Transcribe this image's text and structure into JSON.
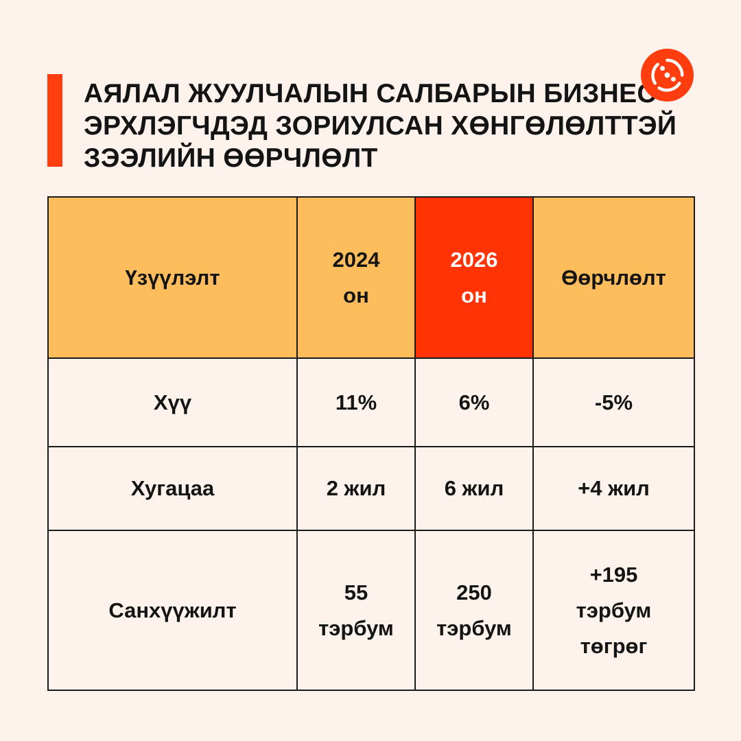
{
  "title": {
    "lines": [
      "АЯЛАЛ ЖУУЛЧАЛЫН САЛБАРЫН БИЗНЕС",
      "ЭРХЛЭГЧДЭД ЗОРИУЛСАН ХӨНГӨЛӨЛТТЭЙ",
      "ЗЭЭЛИЙН ӨӨРЧЛӨЛТ"
    ]
  },
  "colors": {
    "background": "#fdf3ec",
    "accent": "#ff3d0f",
    "header_fill": "#fdbd5c",
    "highlight_fill": "#ff3303"
  },
  "logo": {
    "icon": "brand-logo-icon"
  },
  "table": {
    "headers": [
      {
        "lines": [
          "Үзүүлэлт"
        ]
      },
      {
        "lines": [
          "2024",
          "он"
        ]
      },
      {
        "lines": [
          "2026",
          "он"
        ]
      },
      {
        "lines": [
          "Өөрчлөлт"
        ]
      }
    ],
    "rows": [
      {
        "label": [
          "Хүү"
        ],
        "y2024": [
          "11%"
        ],
        "y2026": [
          "6%"
        ],
        "change": [
          "-5%"
        ]
      },
      {
        "label": [
          "Хугацаа"
        ],
        "y2024": [
          "2 жил"
        ],
        "y2026": [
          "6 жил"
        ],
        "change": [
          "+4 жил"
        ]
      },
      {
        "label": [
          "Санхүүжилт"
        ],
        "y2024": [
          "55",
          "тэрбум"
        ],
        "y2026": [
          "250",
          "тэрбум"
        ],
        "change": [
          "+195",
          "тэрбум",
          "төгрөг"
        ]
      }
    ]
  }
}
